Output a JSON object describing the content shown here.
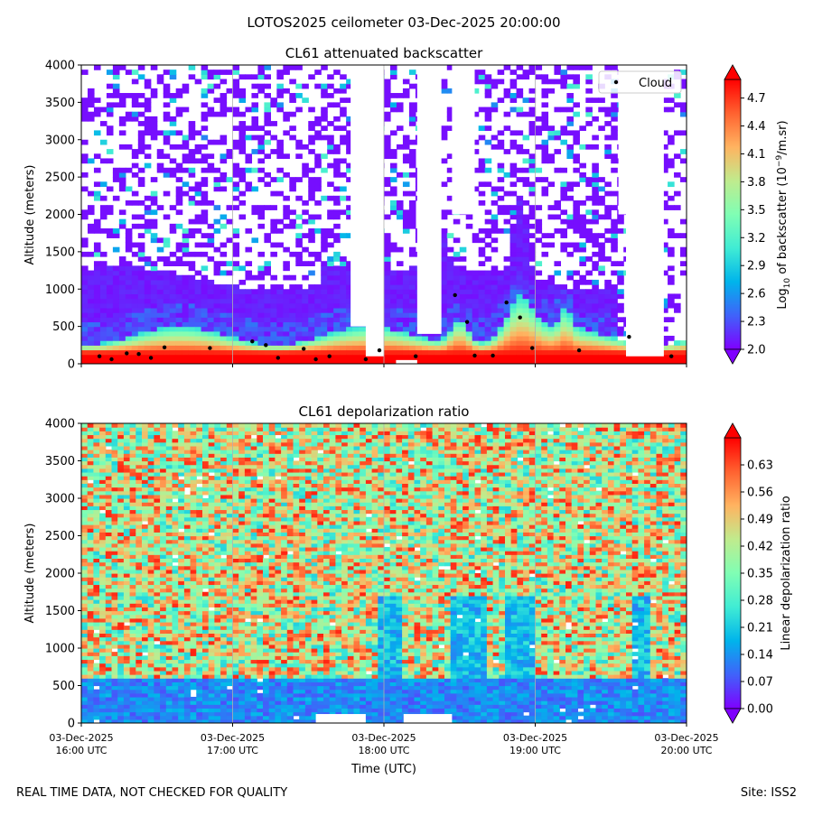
{
  "figure": {
    "suptitle": "LOTOS2025 ceilometer 03-Dec-2025 20:00:00",
    "footer_left": "REAL TIME DATA, NOT CHECKED FOR QUALITY",
    "footer_right": "Site: ISS2"
  },
  "colors": {
    "colormap": [
      "#7f00ff",
      "#4062fa",
      "#00b4eb",
      "#40ecd4",
      "#80feb4",
      "#c0eb8d",
      "#ffb360",
      "#ff6230",
      "#ff0000"
    ]
  },
  "chart_data": [
    {
      "type": "heatmap",
      "title": "CL61 attenuated backscatter",
      "ylabel": "Altitude (meters)",
      "ylim": [
        0,
        4000
      ],
      "yticks": [
        "0",
        "500",
        "1000",
        "1500",
        "2000",
        "2500",
        "3000",
        "3500",
        "4000"
      ],
      "xlim_utc_hours": [
        16,
        20
      ],
      "colorbar": {
        "label": "Log10 of backscatter (10^-9/m.sr)",
        "label_main": "Log",
        "label_sub": "10",
        "label_mid": " of backscatter (10",
        "label_sup": "−9",
        "label_end": "/m.sr)",
        "range": [
          2.0,
          4.9
        ],
        "ticks": [
          "2.0",
          "2.3",
          "2.6",
          "2.9",
          "3.2",
          "3.5",
          "3.8",
          "4.1",
          "4.4",
          "4.7"
        ]
      },
      "legend": {
        "label": "Cloud",
        "position": "top-right"
      },
      "cloud_base": {
        "time": [
          16.12,
          16.2,
          16.3,
          16.38,
          16.46,
          16.55,
          16.85,
          17.13,
          17.22,
          17.3,
          17.47,
          17.55,
          17.64,
          17.88,
          17.97,
          18.21,
          18.47,
          18.55,
          18.6,
          18.72,
          18.81,
          18.9,
          18.98,
          19.29,
          19.62,
          19.9
        ],
        "altitude": [
          100,
          60,
          140,
          130,
          80,
          220,
          210,
          300,
          250,
          80,
          200,
          60,
          100,
          60,
          180,
          100,
          920,
          560,
          110,
          110,
          820,
          620,
          210,
          180,
          360,
          100
        ]
      }
    },
    {
      "type": "heatmap",
      "title": "CL61 depolarization ratio",
      "ylabel": "Altitude (meters)",
      "xlabel": "Time (UTC)",
      "ylim": [
        0,
        4000
      ],
      "yticks": [
        "0",
        "500",
        "1000",
        "1500",
        "2000",
        "2500",
        "3000",
        "3500",
        "4000"
      ],
      "xticks": [
        {
          "date": "03-Dec-2025",
          "time": "16:00 UTC"
        },
        {
          "date": "03-Dec-2025",
          "time": "17:00 UTC"
        },
        {
          "date": "03-Dec-2025",
          "time": "18:00 UTC"
        },
        {
          "date": "03-Dec-2025",
          "time": "19:00 UTC"
        },
        {
          "date": "03-Dec-2025",
          "time": "20:00 UTC"
        }
      ],
      "colorbar": {
        "label": "Linear depolarization ratio",
        "range": [
          0.0,
          0.7
        ],
        "ticks": [
          "0.00",
          "0.07",
          "0.14",
          "0.21",
          "0.28",
          "0.35",
          "0.42",
          "0.49",
          "0.56",
          "0.63"
        ]
      }
    }
  ]
}
